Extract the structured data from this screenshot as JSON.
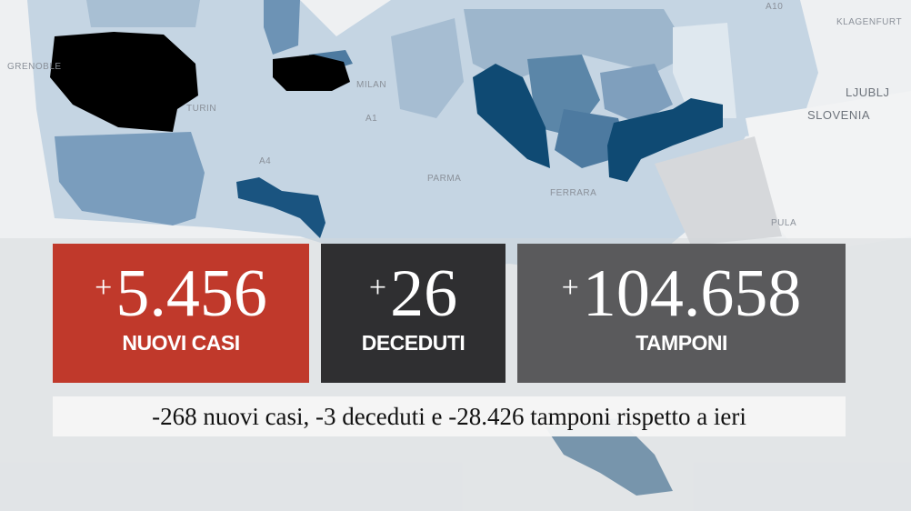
{
  "map": {
    "labels": {
      "grenoble": "GRENOBLE",
      "turin": "TURIN",
      "milan": "MILAN",
      "parma": "PARMA",
      "ferrara": "FERRARA",
      "klagenfurt": "KLAGENFURT",
      "ljubljana": "LJUBLJ",
      "slovenia": "SLOVENIA",
      "pula": "PULA",
      "a10": "A10",
      "a1": "A1",
      "a4": "A4"
    },
    "colors": {
      "highest": "#000000",
      "high": "#0f4a73",
      "mid": "#5b86a8",
      "low": "#9db6cc",
      "lowest": "#d3dfe9"
    }
  },
  "stats": {
    "new_cases": {
      "value": "5.456",
      "sign": "+",
      "label": "NUOVI CASI",
      "color": "#c0392b"
    },
    "deaths": {
      "value": "26",
      "sign": "+",
      "label": "DECEDUTI",
      "color": "#2f2f31"
    },
    "tests": {
      "value": "104.658",
      "sign": "+",
      "label": "TAMPONI",
      "color": "#5a5a5c"
    }
  },
  "comparison": "-268 nuovi casi, -3 deceduti e -28.426 tamponi rispetto a ieri"
}
